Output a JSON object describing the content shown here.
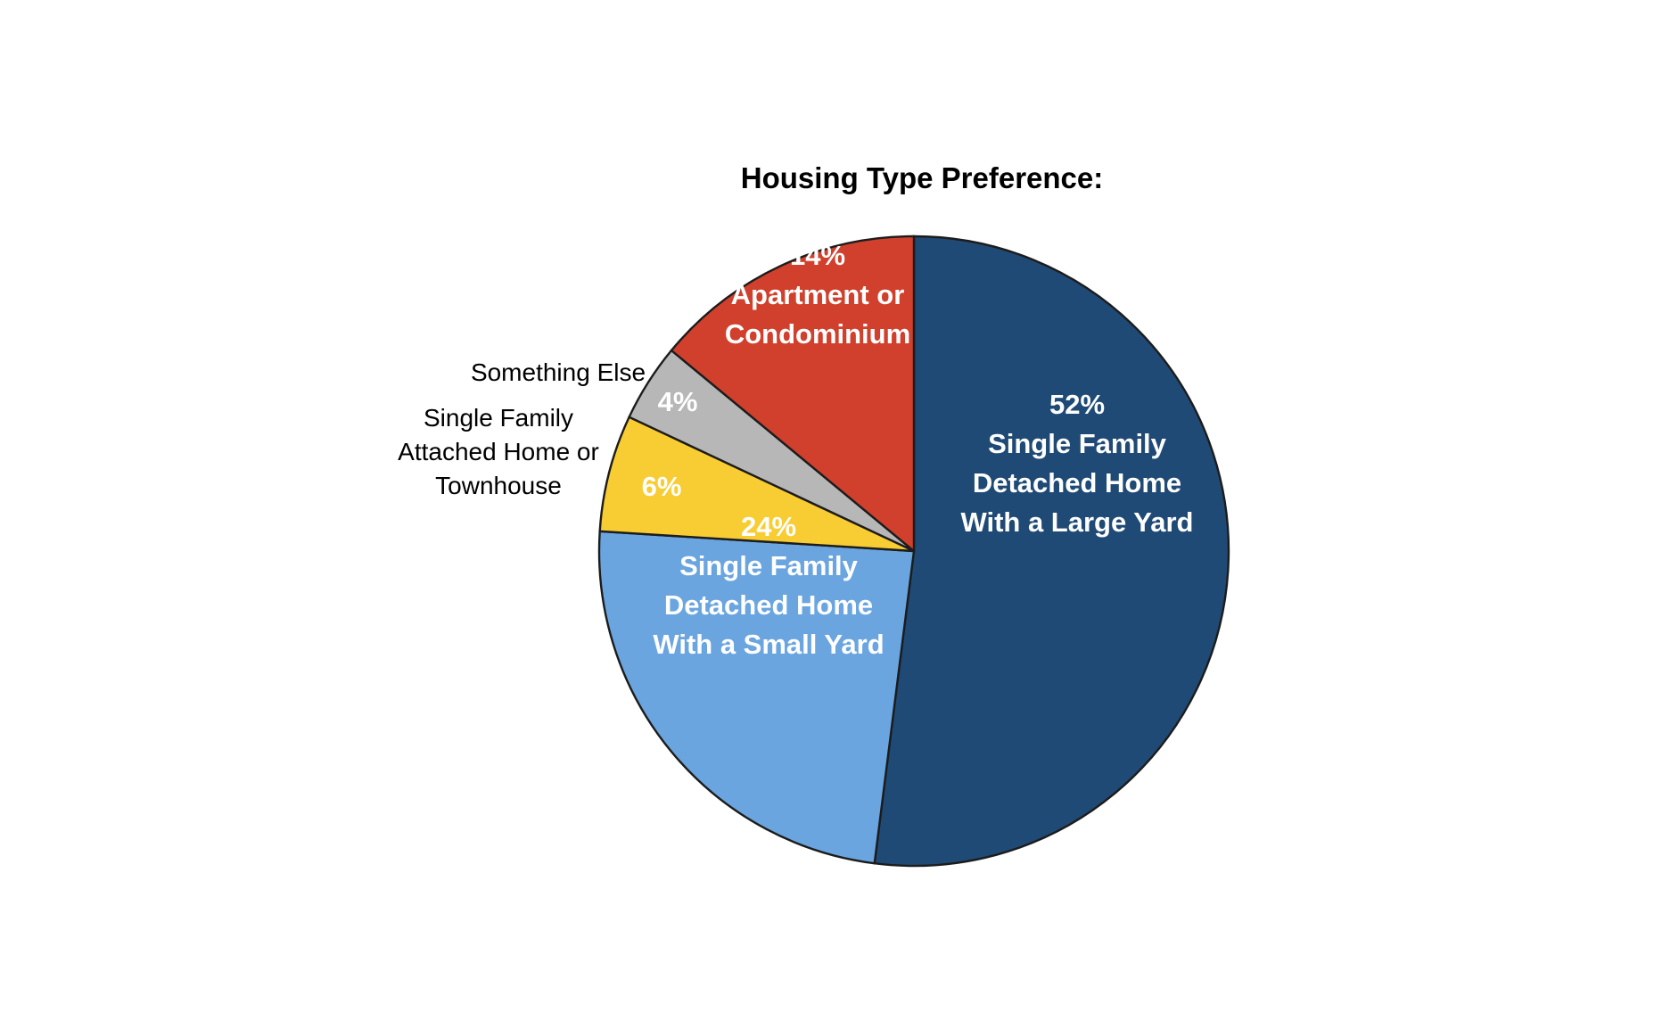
{
  "chart_data": {
    "type": "pie",
    "title": "Housing Type Preference:",
    "slices": [
      {
        "key": "large-yard",
        "label": "Single Family Detached Home With a Large Yard",
        "label_lines": [
          "Single Family",
          "Detached Home",
          "With a Large Yard"
        ],
        "value": 52,
        "value_label": "52%",
        "color": "#1f4a75",
        "label_color": "#ffffff",
        "label_position": "inside"
      },
      {
        "key": "small-yard",
        "label": "Single Family Detached Home With a Small Yard",
        "label_lines": [
          "Single Family",
          "Detached Home",
          "With a Small Yard"
        ],
        "value": 24,
        "value_label": "24%",
        "color": "#6aa5e0",
        "label_color": "#ffffff",
        "label_position": "inside"
      },
      {
        "key": "townhouse",
        "label": "Single Family Attached Home or Townhouse",
        "label_lines": [
          "Single Family",
          "Attached Home or",
          "Townhouse"
        ],
        "value": 6,
        "value_label": "6%",
        "color": "#f8cc33",
        "label_color": "#ffffff",
        "label_position": "outside-left"
      },
      {
        "key": "something-else",
        "label": "Something Else",
        "label_lines": [
          "Something Else"
        ],
        "value": 4,
        "value_label": "4%",
        "color": "#b7b7b7",
        "label_color": "#ffffff",
        "label_position": "outside-left"
      },
      {
        "key": "apartment",
        "label": "Apartment or Condominium",
        "label_lines": [
          "Apartment or",
          "Condominium"
        ],
        "value": 14,
        "value_label": "14%",
        "color": "#d0402c",
        "label_color": "#ffffff",
        "label_position": "inside"
      }
    ],
    "start_angle": "12 o'clock",
    "direction": "clockwise",
    "legend": "none"
  }
}
